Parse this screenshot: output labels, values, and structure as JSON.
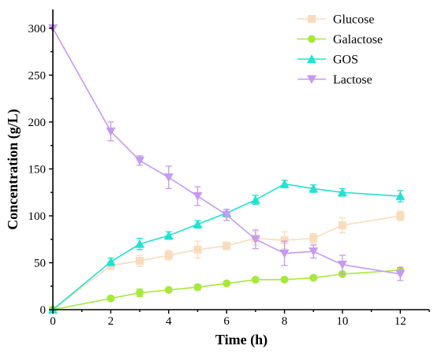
{
  "chart_data": {
    "type": "line",
    "xlabel": "Time (h)",
    "ylabel": "Concentration (g/L)",
    "xlim": [
      0,
      13
    ],
    "ylim": [
      0,
      320
    ],
    "xticks": [
      "0",
      "2",
      "4",
      "6",
      "8",
      "10",
      "12"
    ],
    "yticks": [
      "0",
      "50",
      "100",
      "150",
      "200",
      "250",
      "300"
    ],
    "legend_position": "top-right",
    "grid": false,
    "series": [
      {
        "name": "Glucose",
        "color": "#f9dcbd",
        "marker": "square",
        "x": [
          0,
          2,
          3,
          4,
          5,
          6,
          7,
          8,
          9,
          10,
          12
        ],
        "values": [
          0,
          47,
          52,
          58,
          64,
          68,
          76,
          74,
          76,
          90,
          100
        ],
        "errors": [
          0,
          4,
          6,
          5,
          9,
          4,
          7,
          9,
          5,
          8,
          5
        ]
      },
      {
        "name": "Galactose",
        "color": "#a6e83b",
        "marker": "circle",
        "x": [
          0,
          2,
          3,
          4,
          5,
          6,
          7,
          8,
          9,
          10,
          12
        ],
        "values": [
          0,
          12,
          18,
          21,
          24,
          28,
          32,
          32,
          34,
          38,
          42
        ],
        "errors": [
          0,
          2,
          4,
          2,
          3,
          2,
          2,
          2,
          2,
          2,
          2
        ]
      },
      {
        "name": "GOS",
        "color": "#22e2d0",
        "marker": "triangle-up",
        "x": [
          0,
          2,
          3,
          4,
          5,
          6,
          7,
          8,
          9,
          10,
          12
        ],
        "values": [
          0,
          51,
          70,
          79,
          91,
          103,
          117,
          134,
          129,
          125,
          121
        ],
        "errors": [
          0,
          4,
          6,
          4,
          4,
          4,
          5,
          4,
          4,
          4,
          6
        ]
      },
      {
        "name": "Lactose",
        "color": "#c59af0",
        "marker": "triangle-down",
        "x": [
          0,
          2,
          3,
          4,
          5,
          6,
          7,
          8,
          9,
          10,
          12
        ],
        "values": [
          300,
          190,
          159,
          141,
          121,
          101,
          75,
          60,
          62,
          48,
          38
        ],
        "errors": [
          0,
          10,
          5,
          12,
          10,
          6,
          10,
          13,
          7,
          10,
          7
        ]
      }
    ]
  }
}
